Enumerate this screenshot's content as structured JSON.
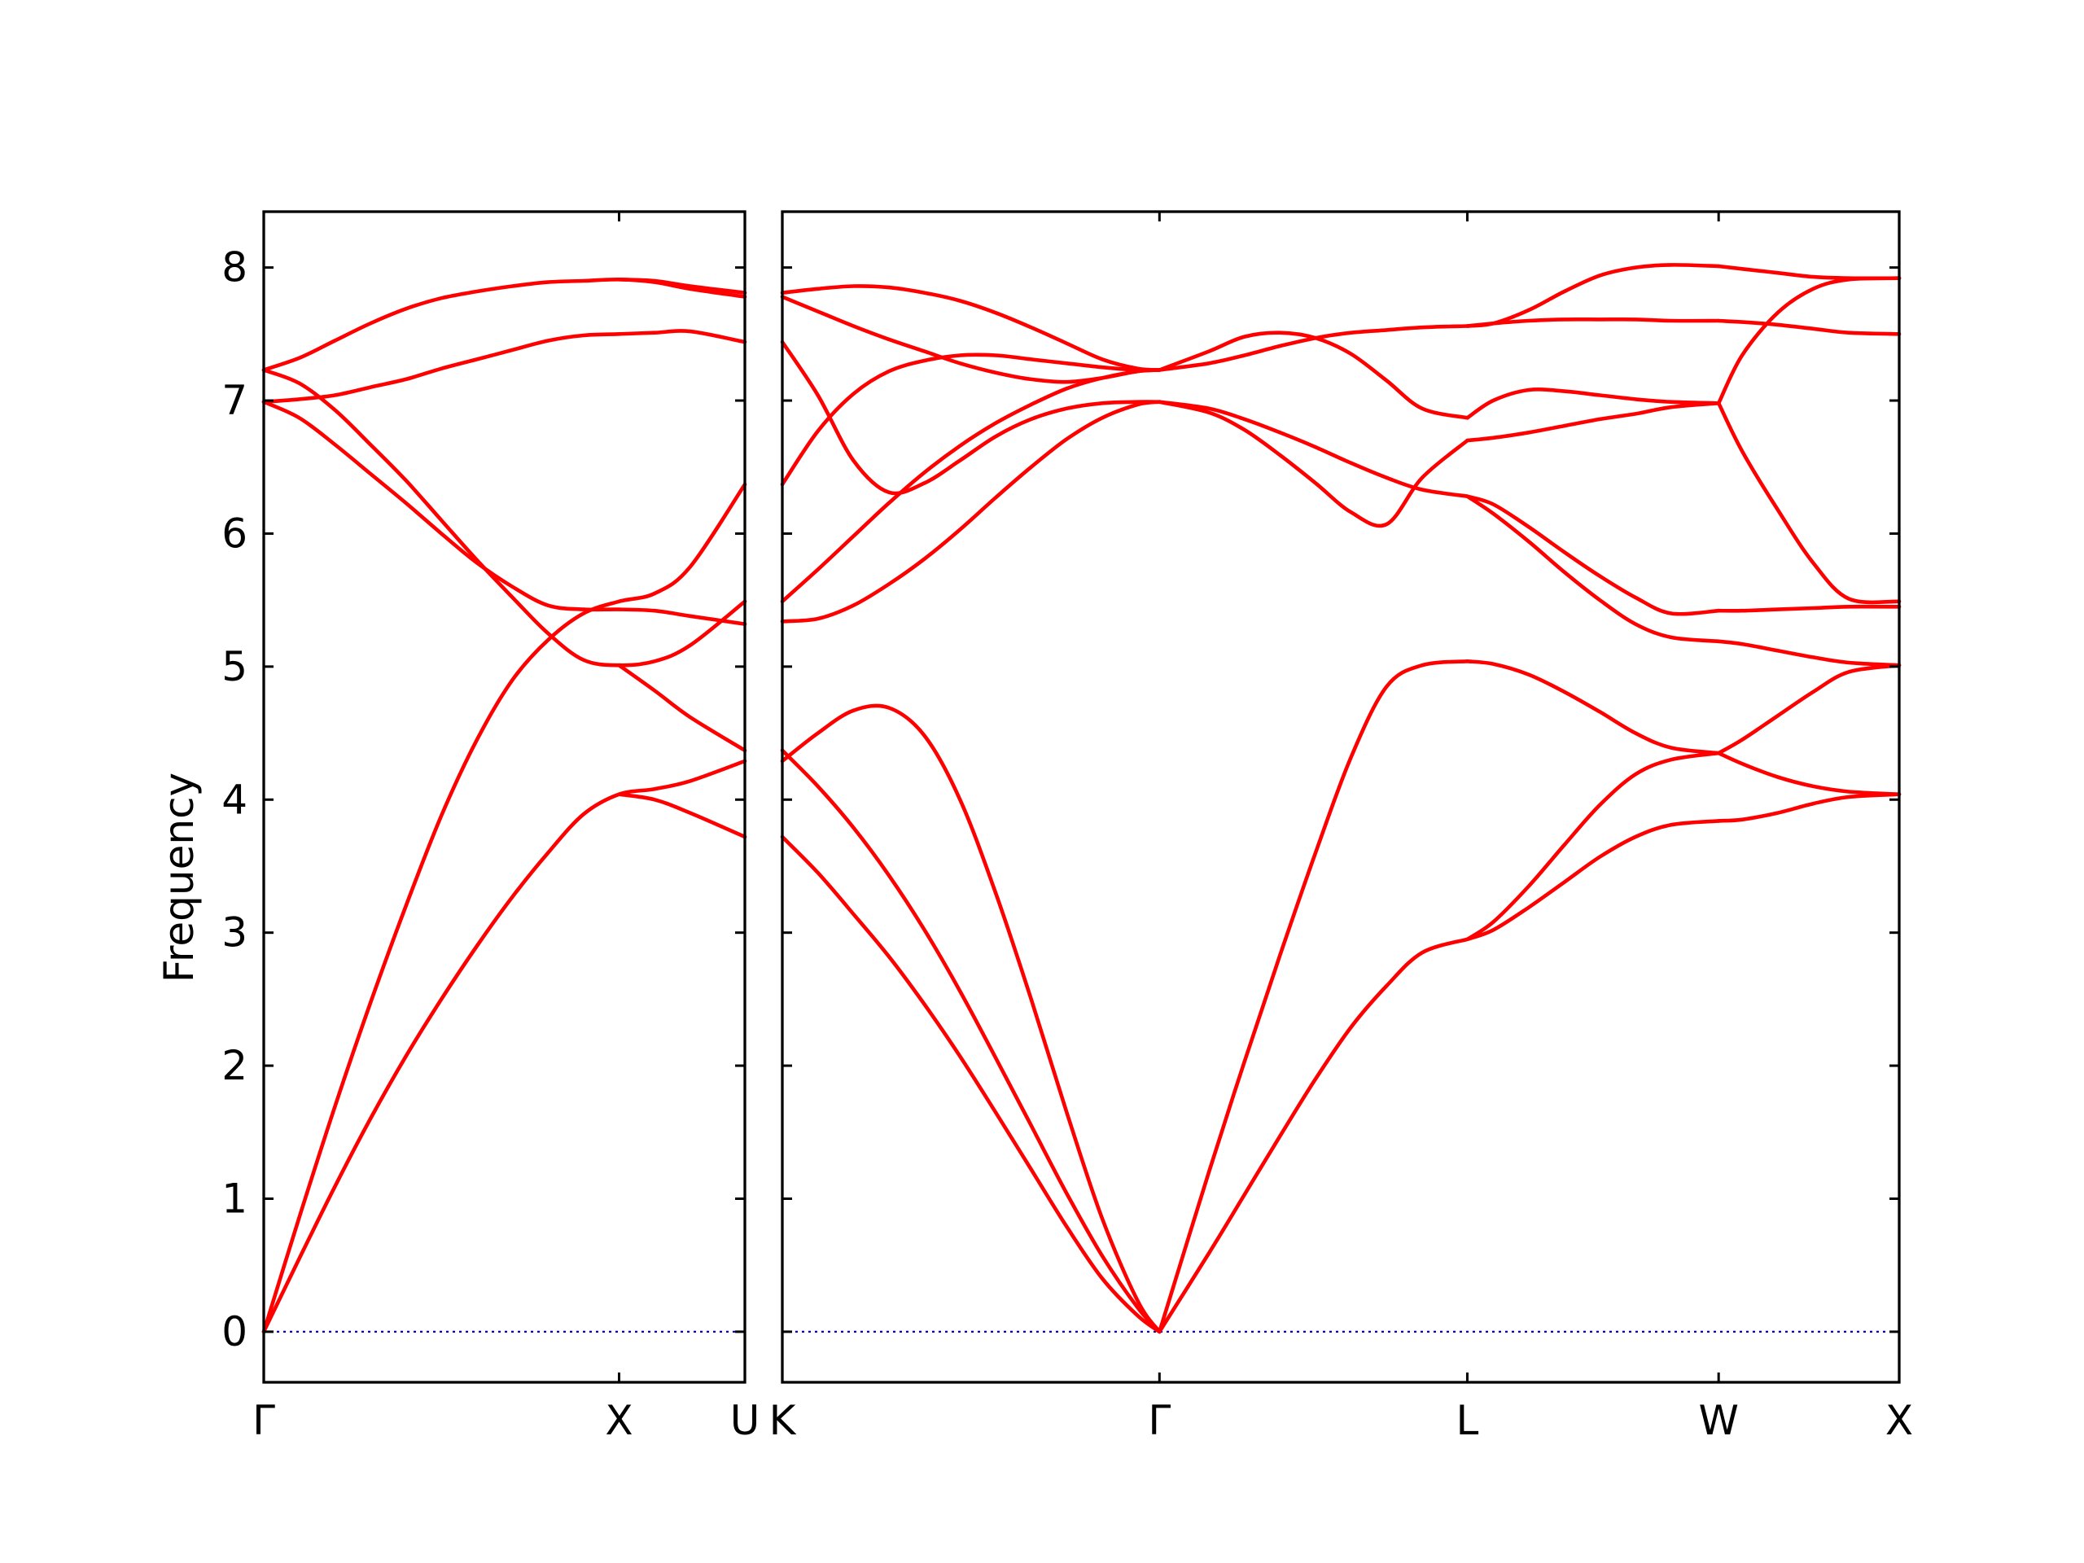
{
  "chart_data": {
    "type": "line",
    "title": "",
    "xlabel": "",
    "ylabel": "Frequency",
    "ylim": [
      -0.38,
      8.42
    ],
    "yticks": [
      0,
      1,
      2,
      3,
      4,
      5,
      6,
      7,
      8
    ],
    "grid": false,
    "colors": {
      "bands": "#ff0000",
      "zero_line": "#0000cc",
      "frame": "#000000"
    },
    "panels": [
      {
        "path_labels": [
          "Γ",
          "X",
          "U"
        ],
        "xlim": [
          0.0,
          1.354
        ],
        "label_positions": [
          0.0,
          1.0,
          1.354
        ],
        "bands": [
          {
            "x": [
              0,
              0.1,
              0.2,
              0.3,
              0.4,
              0.5,
              0.6,
              0.7,
              0.8,
              0.9,
              1.0,
              1.1,
              1.2,
              1.354
            ],
            "y": [
              0,
              0.86,
              1.69,
              2.47,
              3.2,
              3.88,
              4.45,
              4.9,
              5.2,
              5.4,
              5.49,
              5.55,
              5.75,
              6.37
            ]
          },
          {
            "x": [
              0,
              0.1,
              0.2,
              0.3,
              0.4,
              0.5,
              0.6,
              0.7,
              0.8,
              0.9,
              1.0,
              1.1,
              1.2,
              1.354
            ],
            "y": [
              0,
              0.55,
              1.09,
              1.6,
              2.07,
              2.5,
              2.9,
              3.27,
              3.6,
              3.89,
              4.04,
              4.08,
              4.14,
              4.29
            ]
          },
          {
            "x": [
              0,
              0.1,
              0.2,
              0.3,
              0.4,
              0.5,
              0.6,
              0.7,
              0.8,
              0.9,
              1.0,
              1.1,
              1.2,
              1.354
            ],
            "y": [
              6.99,
              6.87,
              6.67,
              6.45,
              6.23,
              6.0,
              5.78,
              5.6,
              5.46,
              5.43,
              5.43,
              5.42,
              5.38,
              5.32
            ]
          },
          {
            "x": [
              0,
              0.1,
              0.2,
              0.3,
              0.4,
              0.5,
              0.6,
              0.7,
              0.8,
              0.9,
              1.0,
              1.1,
              1.2,
              1.354
            ],
            "y": [
              7.23,
              7.13,
              6.93,
              6.67,
              6.4,
              6.1,
              5.8,
              5.52,
              5.25,
              5.05,
              5.01,
              5.04,
              5.16,
              5.49
            ]
          },
          {
            "x": [
              0,
              0.1,
              0.2,
              0.3,
              0.4,
              0.5,
              0.6,
              0.7,
              0.8,
              0.9,
              1.0,
              1.1,
              1.2,
              1.354
            ],
            "y": [
              6.99,
              7.01,
              7.04,
              7.1,
              7.16,
              7.24,
              7.31,
              7.38,
              7.45,
              7.49,
              7.5,
              7.51,
              7.52,
              7.44
            ]
          },
          {
            "x": [
              0,
              0.1,
              0.2,
              0.3,
              0.4,
              0.5,
              0.6,
              0.7,
              0.8,
              0.9,
              1.0,
              1.1,
              1.2,
              1.354
            ],
            "y": [
              7.23,
              7.32,
              7.45,
              7.58,
              7.69,
              7.77,
              7.82,
              7.86,
              7.89,
              7.9,
              7.91,
              7.89,
              7.84,
              7.78
            ]
          },
          {
            "x": [
              1.0,
              1.1,
              1.2,
              1.354
            ],
            "y": [
              5.01,
              4.82,
              4.62,
              4.37
            ]
          },
          {
            "x": [
              1.0,
              1.1,
              1.2,
              1.354
            ],
            "y": [
              4.04,
              4.0,
              3.9,
              3.72
            ]
          },
          {
            "x": [
              1.0,
              1.1,
              1.2,
              1.354
            ],
            "y": [
              7.91,
              7.9,
              7.86,
              7.81
            ]
          }
        ]
      },
      {
        "path_labels": [
          "K",
          "Γ",
          "L",
          "W",
          "X"
        ],
        "xlim": [
          0.0,
          3.142
        ],
        "label_positions": [
          0.0,
          1.061,
          1.927,
          2.634,
          3.142
        ],
        "bands": [
          {
            "x": [
              0,
              0.1,
              0.2,
              0.3,
              0.4,
              0.5,
              0.6,
              0.7,
              0.8,
              0.9,
              1.0,
              1.061
            ],
            "y": [
              3.72,
              3.45,
              3.14,
              2.82,
              2.46,
              2.07,
              1.65,
              1.22,
              0.79,
              0.4,
              0.12,
              0
            ]
          },
          {
            "x": [
              0,
              0.1,
              0.2,
              0.3,
              0.4,
              0.5,
              0.6,
              0.7,
              0.8,
              0.9,
              1.0,
              1.061
            ],
            "y": [
              4.37,
              4.1,
              3.79,
              3.43,
              3.02,
              2.56,
              2.06,
              1.55,
              1.04,
              0.57,
              0.18,
              0
            ]
          },
          {
            "x": [
              0,
              0.1,
              0.2,
              0.3,
              0.4,
              0.5,
              0.6,
              0.7,
              0.8,
              0.9,
              1.0,
              1.061
            ],
            "y": [
              4.29,
              4.5,
              4.67,
              4.69,
              4.48,
              4.0,
              3.3,
              2.5,
              1.65,
              0.85,
              0.23,
              0
            ]
          },
          {
            "x": [
              0,
              0.1,
              0.2,
              0.3,
              0.4,
              0.5,
              0.6,
              0.7,
              0.8,
              0.9,
              1.0,
              1.061
            ],
            "y": [
              5.34,
              5.36,
              5.46,
              5.62,
              5.81,
              6.03,
              6.27,
              6.5,
              6.71,
              6.87,
              6.97,
              6.99
            ]
          },
          {
            "x": [
              0,
              0.1,
              0.2,
              0.3,
              0.4,
              0.5,
              0.6,
              0.7,
              0.8,
              0.9,
              1.0,
              1.061
            ],
            "y": [
              5.49,
              5.73,
              5.98,
              6.23,
              6.46,
              6.66,
              6.83,
              6.97,
              7.09,
              7.17,
              7.22,
              7.23
            ]
          },
          {
            "x": [
              0,
              0.1,
              0.2,
              0.3,
              0.4,
              0.5,
              0.6,
              0.7,
              0.8,
              0.9,
              1.0,
              1.061
            ],
            "y": [
              6.37,
              6.77,
              7.05,
              7.22,
              7.3,
              7.34,
              7.34,
              7.31,
              7.28,
              7.25,
              7.23,
              7.23
            ]
          },
          {
            "x": [
              0,
              0.1,
              0.2,
              0.3,
              0.4,
              0.5,
              0.6,
              0.7,
              0.8,
              0.9,
              1.0,
              1.061
            ],
            "y": [
              7.44,
              7.04,
              6.55,
              6.31,
              6.38,
              6.55,
              6.73,
              6.86,
              6.94,
              6.98,
              6.99,
              6.99
            ]
          },
          {
            "x": [
              0,
              0.1,
              0.2,
              0.3,
              0.4,
              0.5,
              0.6,
              0.7,
              0.8,
              0.9,
              1.0,
              1.061
            ],
            "y": [
              7.78,
              7.67,
              7.56,
              7.46,
              7.37,
              7.28,
              7.21,
              7.16,
              7.14,
              7.17,
              7.22,
              7.23
            ]
          },
          {
            "x": [
              0,
              0.1,
              0.2,
              0.3,
              0.4,
              0.5,
              0.6,
              0.7,
              0.8,
              0.9,
              1.0,
              1.061
            ],
            "y": [
              7.81,
              7.84,
              7.86,
              7.85,
              7.81,
              7.75,
              7.66,
              7.55,
              7.43,
              7.31,
              7.24,
              7.23
            ]
          },
          {
            "x": [
              1.061,
              1.2,
              1.3,
              1.4,
              1.5,
              1.6,
              1.7,
              1.8,
              1.927
            ],
            "y": [
              0,
              0.59,
              1.03,
              1.47,
              1.9,
              2.29,
              2.6,
              2.85,
              2.95
            ]
          },
          {
            "x": [
              1.061,
              1.2,
              1.3,
              1.4,
              1.5,
              1.6,
              1.7,
              1.8,
              1.927
            ],
            "y": [
              0,
              1.2,
              2.03,
              2.83,
              3.6,
              4.32,
              4.85,
              5.01,
              5.04
            ]
          },
          {
            "x": [
              1.061,
              1.2,
              1.3,
              1.4,
              1.5,
              1.6,
              1.7,
              1.8,
              1.927
            ],
            "y": [
              6.99,
              6.91,
              6.78,
              6.59,
              6.38,
              6.16,
              6.07,
              6.42,
              6.7
            ]
          },
          {
            "x": [
              1.061,
              1.2,
              1.3,
              1.4,
              1.5,
              1.6,
              1.7,
              1.8,
              1.927
            ],
            "y": [
              6.99,
              6.94,
              6.86,
              6.76,
              6.65,
              6.53,
              6.42,
              6.33,
              6.28
            ]
          },
          {
            "x": [
              1.061,
              1.2,
              1.3,
              1.4,
              1.5,
              1.6,
              1.7,
              1.8,
              1.927
            ],
            "y": [
              7.23,
              7.28,
              7.34,
              7.41,
              7.47,
              7.51,
              7.53,
              7.55,
              7.56
            ]
          },
          {
            "x": [
              1.061,
              1.2,
              1.3,
              1.4,
              1.5,
              1.6,
              1.7,
              1.8,
              1.927
            ],
            "y": [
              7.23,
              7.37,
              7.48,
              7.51,
              7.47,
              7.35,
              7.15,
              6.94,
              6.87
            ]
          },
          {
            "x": [
              1.927,
              2.0,
              2.1,
              2.2,
              2.3,
              2.4,
              2.5,
              2.634
            ],
            "y": [
              2.95,
              3.02,
              3.19,
              3.38,
              3.57,
              3.72,
              3.81,
              3.84
            ]
          },
          {
            "x": [
              1.927,
              2.0,
              2.1,
              2.2,
              2.3,
              2.4,
              2.5,
              2.634
            ],
            "y": [
              2.95,
              3.08,
              3.35,
              3.66,
              3.96,
              4.19,
              4.3,
              4.35
            ]
          },
          {
            "x": [
              1.927,
              2.0,
              2.1,
              2.2,
              2.3,
              2.4,
              2.5,
              2.634
            ],
            "y": [
              5.04,
              5.02,
              4.94,
              4.81,
              4.66,
              4.5,
              4.39,
              4.35
            ]
          },
          {
            "x": [
              1.927,
              2.0,
              2.1,
              2.2,
              2.3,
              2.4,
              2.5,
              2.634
            ],
            "y": [
              6.28,
              6.22,
              6.05,
              5.86,
              5.68,
              5.52,
              5.4,
              5.42
            ]
          },
          {
            "x": [
              1.927,
              2.0,
              2.1,
              2.2,
              2.3,
              2.4,
              2.5,
              2.634
            ],
            "y": [
              6.28,
              6.15,
              5.94,
              5.71,
              5.5,
              5.32,
              5.22,
              5.19
            ]
          },
          {
            "x": [
              1.927,
              2.0,
              2.1,
              2.2,
              2.3,
              2.4,
              2.5,
              2.634
            ],
            "y": [
              6.7,
              6.72,
              6.76,
              6.81,
              6.86,
              6.9,
              6.95,
              6.98
            ]
          },
          {
            "x": [
              1.927,
              2.0,
              2.1,
              2.2,
              2.3,
              2.4,
              2.5,
              2.634
            ],
            "y": [
              6.87,
              7.0,
              7.08,
              7.07,
              7.04,
              7.01,
              6.99,
              6.98
            ]
          },
          {
            "x": [
              1.927,
              2.0,
              2.1,
              2.2,
              2.3,
              2.4,
              2.5,
              2.634
            ],
            "y": [
              7.56,
              7.58,
              7.6,
              7.61,
              7.61,
              7.61,
              7.6,
              7.6
            ]
          },
          {
            "x": [
              1.927,
              2.0,
              2.1,
              2.2,
              2.3,
              2.4,
              2.5,
              2.634
            ],
            "y": [
              7.56,
              7.58,
              7.68,
              7.82,
              7.94,
              8.0,
              8.02,
              8.01
            ]
          },
          {
            "x": [
              2.634,
              2.7,
              2.8,
              2.9,
              3.0,
              3.142
            ],
            "y": [
              3.84,
              3.85,
              3.9,
              3.97,
              4.02,
              4.04
            ]
          },
          {
            "x": [
              2.634,
              2.7,
              2.8,
              2.9,
              3.0,
              3.142
            ],
            "y": [
              4.35,
              4.27,
              4.17,
              4.1,
              4.06,
              4.04
            ]
          },
          {
            "x": [
              2.634,
              2.7,
              2.8,
              2.9,
              3.0,
              3.142
            ],
            "y": [
              4.35,
              4.45,
              4.63,
              4.81,
              4.96,
              5.01
            ]
          },
          {
            "x": [
              2.634,
              2.7,
              2.8,
              2.9,
              3.0,
              3.142
            ],
            "y": [
              5.19,
              5.17,
              5.12,
              5.07,
              5.03,
              5.01
            ]
          },
          {
            "x": [
              2.634,
              2.7,
              2.8,
              2.9,
              3.0,
              3.142
            ],
            "y": [
              5.42,
              5.42,
              5.43,
              5.44,
              5.45,
              5.45
            ]
          },
          {
            "x": [
              2.634,
              2.7,
              2.8,
              2.9,
              3.0,
              3.142
            ],
            "y": [
              6.98,
              6.62,
              6.18,
              5.78,
              5.51,
              5.49
            ]
          },
          {
            "x": [
              2.634,
              2.7,
              2.8,
              2.9,
              3.0,
              3.142
            ],
            "y": [
              7.6,
              7.59,
              7.57,
              7.54,
              7.51,
              7.5
            ]
          },
          {
            "x": [
              2.634,
              2.7,
              2.8,
              2.9,
              3.0,
              3.142
            ],
            "y": [
              6.98,
              7.34,
              7.66,
              7.84,
              7.91,
              7.92
            ]
          },
          {
            "x": [
              2.634,
              2.7,
              2.8,
              2.9,
              3.0,
              3.142
            ],
            "y": [
              8.01,
              7.99,
              7.96,
              7.93,
              7.92,
              7.92
            ]
          }
        ]
      }
    ]
  }
}
